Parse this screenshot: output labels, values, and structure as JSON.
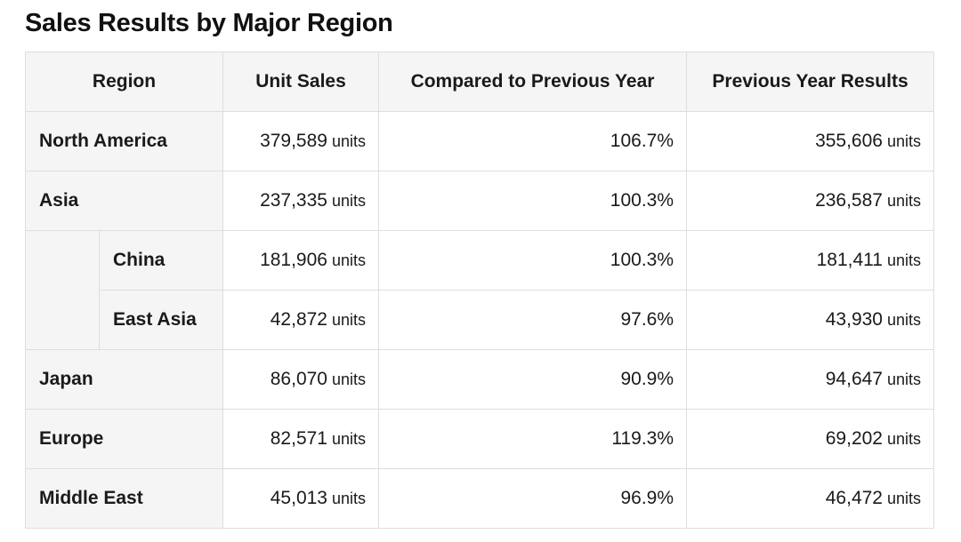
{
  "title": "Sales Results by Major Region",
  "unit_suffix": "units",
  "headers": {
    "region": "Region",
    "unit_sales": "Unit Sales",
    "compared": "Compared to Previous Year",
    "previous": "Previous Year Results"
  },
  "rows": [
    {
      "region": "North America",
      "unit_sales": "379,589",
      "compared": "106.7%",
      "previous": "355,606"
    },
    {
      "region": "Asia",
      "unit_sales": "237,335",
      "compared": "100.3%",
      "previous": "236,587"
    },
    {
      "region": "China",
      "unit_sales": "181,906",
      "compared": "100.3%",
      "previous": "181,411",
      "parent": "Asia"
    },
    {
      "region": "East Asia",
      "unit_sales": "42,872",
      "compared": "97.6%",
      "previous": "43,930",
      "parent": "Asia"
    },
    {
      "region": "Japan",
      "unit_sales": "86,070",
      "compared": "90.9%",
      "previous": "94,647"
    },
    {
      "region": "Europe",
      "unit_sales": "82,571",
      "compared": "119.3%",
      "previous": "69,202"
    },
    {
      "region": "Middle East",
      "unit_sales": "45,013",
      "compared": "96.9%",
      "previous": "46,472"
    }
  ]
}
